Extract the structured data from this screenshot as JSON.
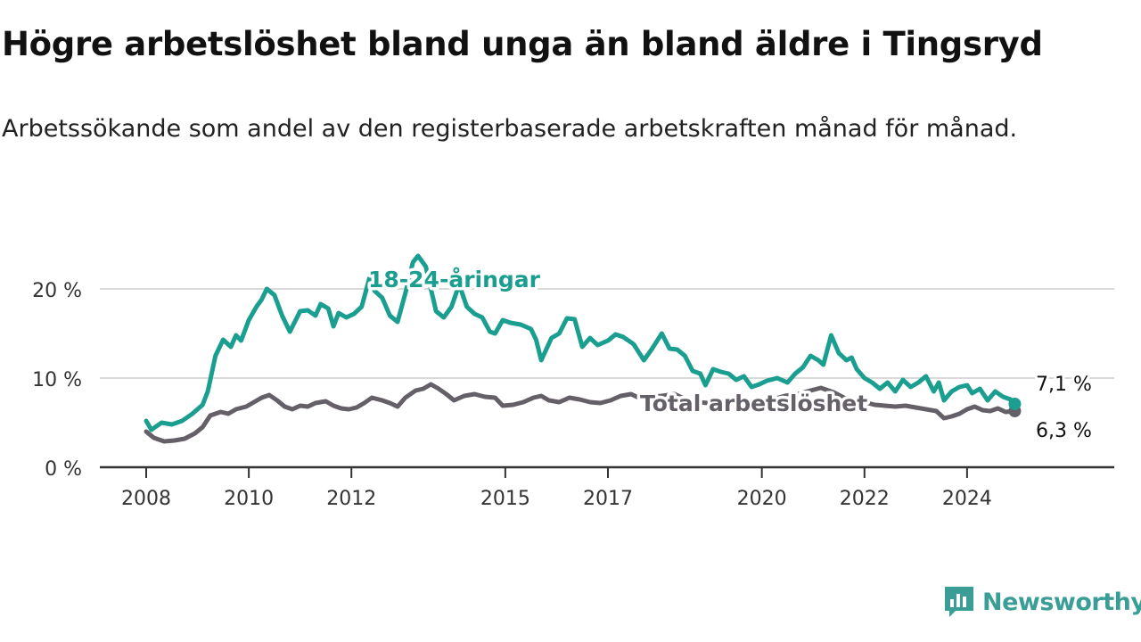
{
  "header": {
    "title": "Högre arbetslöshet bland unga än bland äldre i Tingsryd",
    "subtitle": "Arbetssökande som andel av den registerbaserade arbetskraften månad för månad."
  },
  "brand": {
    "name": "Newsworthy",
    "color": "#3b9e96"
  },
  "chart_data": {
    "type": "line",
    "title": "Högre arbetslöshet bland unga än bland äldre i Tingsryd",
    "subtitle": "Arbetssökande som andel av den registerbaserade arbetskraften månad för månad.",
    "xlabel": "",
    "ylabel": "",
    "xlim": [
      2008.0,
      2026.0
    ],
    "ylim": [
      0,
      24
    ],
    "x_ticks": [
      2008,
      2010,
      2012,
      2015,
      2017,
      2020,
      2022,
      2024
    ],
    "x_tick_labels": [
      "2008",
      "2010",
      "2012",
      "2015",
      "2017",
      "2020",
      "2022",
      "2024"
    ],
    "y_ticks": [
      0,
      10,
      20
    ],
    "y_tick_labels": [
      "0 %",
      "10 %",
      "20 %"
    ],
    "grid": "horizontal",
    "series": [
      {
        "name": "18-24-åringar",
        "color": "#1a9e8f",
        "end_label": "7,1 %",
        "points": [
          [
            2008.0,
            5.2
          ],
          [
            2008.1,
            4.2
          ],
          [
            2008.3,
            5.0
          ],
          [
            2008.5,
            4.8
          ],
          [
            2008.7,
            5.2
          ],
          [
            2008.9,
            6.0
          ],
          [
            2009.1,
            7.0
          ],
          [
            2009.2,
            8.5
          ],
          [
            2009.35,
            12.5
          ],
          [
            2009.5,
            14.3
          ],
          [
            2009.65,
            13.5
          ],
          [
            2009.75,
            14.8
          ],
          [
            2009.85,
            14.2
          ],
          [
            2010.0,
            16.5
          ],
          [
            2010.15,
            18.0
          ],
          [
            2010.25,
            18.8
          ],
          [
            2010.35,
            20.0
          ],
          [
            2010.5,
            19.3
          ],
          [
            2010.65,
            17.0
          ],
          [
            2010.8,
            15.2
          ],
          [
            2011.0,
            17.5
          ],
          [
            2011.15,
            17.6
          ],
          [
            2011.3,
            17.0
          ],
          [
            2011.4,
            18.3
          ],
          [
            2011.55,
            17.8
          ],
          [
            2011.65,
            15.8
          ],
          [
            2011.75,
            17.3
          ],
          [
            2011.9,
            16.8
          ],
          [
            2012.05,
            17.2
          ],
          [
            2012.2,
            18.0
          ],
          [
            2012.35,
            21.2
          ],
          [
            2012.45,
            19.8
          ],
          [
            2012.6,
            19.0
          ],
          [
            2012.75,
            17.0
          ],
          [
            2012.9,
            16.3
          ],
          [
            2013.05,
            19.5
          ],
          [
            2013.2,
            23.0
          ],
          [
            2013.3,
            23.7
          ],
          [
            2013.45,
            22.5
          ],
          [
            2013.55,
            20.0
          ],
          [
            2013.65,
            17.5
          ],
          [
            2013.8,
            16.8
          ],
          [
            2013.95,
            18.0
          ],
          [
            2014.1,
            20.5
          ],
          [
            2014.25,
            18.0
          ],
          [
            2014.4,
            17.2
          ],
          [
            2014.55,
            16.8
          ],
          [
            2014.7,
            15.2
          ],
          [
            2014.8,
            15.0
          ],
          [
            2014.95,
            16.5
          ],
          [
            2015.1,
            16.2
          ],
          [
            2015.3,
            16.0
          ],
          [
            2015.5,
            15.5
          ],
          [
            2015.6,
            14.3
          ],
          [
            2015.7,
            12.0
          ],
          [
            2015.9,
            14.5
          ],
          [
            2016.05,
            15.0
          ],
          [
            2016.2,
            16.7
          ],
          [
            2016.35,
            16.6
          ],
          [
            2016.5,
            13.5
          ],
          [
            2016.65,
            14.5
          ],
          [
            2016.8,
            13.7
          ],
          [
            2017.0,
            14.2
          ],
          [
            2017.15,
            14.9
          ],
          [
            2017.3,
            14.6
          ],
          [
            2017.5,
            13.8
          ],
          [
            2017.7,
            12.0
          ],
          [
            2017.85,
            13.2
          ],
          [
            2018.05,
            15.0
          ],
          [
            2018.2,
            13.3
          ],
          [
            2018.35,
            13.2
          ],
          [
            2018.5,
            12.5
          ],
          [
            2018.65,
            10.8
          ],
          [
            2018.8,
            10.5
          ],
          [
            2018.9,
            9.2
          ],
          [
            2019.05,
            11.0
          ],
          [
            2019.2,
            10.7
          ],
          [
            2019.35,
            10.5
          ],
          [
            2019.5,
            9.8
          ],
          [
            2019.65,
            10.2
          ],
          [
            2019.8,
            9.0
          ],
          [
            2019.95,
            9.3
          ],
          [
            2020.1,
            9.7
          ],
          [
            2020.3,
            10.0
          ],
          [
            2020.5,
            9.5
          ],
          [
            2020.65,
            10.5
          ],
          [
            2020.8,
            11.2
          ],
          [
            2020.95,
            12.5
          ],
          [
            2021.1,
            12.0
          ],
          [
            2021.2,
            11.5
          ],
          [
            2021.35,
            14.8
          ],
          [
            2021.5,
            12.8
          ],
          [
            2021.65,
            12.0
          ],
          [
            2021.75,
            12.3
          ],
          [
            2021.85,
            11.0
          ],
          [
            2022.0,
            10.0
          ],
          [
            2022.15,
            9.5
          ],
          [
            2022.3,
            8.8
          ],
          [
            2022.45,
            9.5
          ],
          [
            2022.6,
            8.5
          ],
          [
            2022.75,
            9.8
          ],
          [
            2022.9,
            9.0
          ],
          [
            2023.05,
            9.5
          ],
          [
            2023.2,
            10.2
          ],
          [
            2023.35,
            8.5
          ],
          [
            2023.45,
            9.5
          ],
          [
            2023.55,
            7.5
          ],
          [
            2023.7,
            8.5
          ],
          [
            2023.85,
            9.0
          ],
          [
            2024.0,
            9.2
          ],
          [
            2024.1,
            8.3
          ],
          [
            2024.25,
            8.8
          ],
          [
            2024.4,
            7.5
          ],
          [
            2024.55,
            8.5
          ],
          [
            2024.7,
            7.9
          ],
          [
            2024.85,
            7.6
          ],
          [
            2024.93,
            7.1
          ]
        ]
      },
      {
        "name": "Total arbetslöshet",
        "color": "#656068",
        "end_label": "6,3 %",
        "points": [
          [
            2008.0,
            4.0
          ],
          [
            2008.15,
            3.3
          ],
          [
            2008.35,
            2.9
          ],
          [
            2008.55,
            3.0
          ],
          [
            2008.75,
            3.2
          ],
          [
            2008.95,
            3.8
          ],
          [
            2009.1,
            4.5
          ],
          [
            2009.25,
            5.8
          ],
          [
            2009.45,
            6.2
          ],
          [
            2009.6,
            6.0
          ],
          [
            2009.75,
            6.5
          ],
          [
            2009.95,
            6.8
          ],
          [
            2010.1,
            7.3
          ],
          [
            2010.25,
            7.8
          ],
          [
            2010.4,
            8.1
          ],
          [
            2010.55,
            7.5
          ],
          [
            2010.7,
            6.8
          ],
          [
            2010.85,
            6.5
          ],
          [
            2011.0,
            6.9
          ],
          [
            2011.15,
            6.8
          ],
          [
            2011.3,
            7.2
          ],
          [
            2011.5,
            7.4
          ],
          [
            2011.65,
            6.9
          ],
          [
            2011.8,
            6.6
          ],
          [
            2011.95,
            6.5
          ],
          [
            2012.1,
            6.7
          ],
          [
            2012.25,
            7.2
          ],
          [
            2012.4,
            7.8
          ],
          [
            2012.6,
            7.5
          ],
          [
            2012.75,
            7.2
          ],
          [
            2012.9,
            6.8
          ],
          [
            2013.05,
            7.8
          ],
          [
            2013.25,
            8.6
          ],
          [
            2013.4,
            8.8
          ],
          [
            2013.55,
            9.3
          ],
          [
            2013.7,
            8.8
          ],
          [
            2013.85,
            8.2
          ],
          [
            2014.0,
            7.5
          ],
          [
            2014.2,
            8.0
          ],
          [
            2014.4,
            8.2
          ],
          [
            2014.6,
            7.9
          ],
          [
            2014.8,
            7.8
          ],
          [
            2014.95,
            6.9
          ],
          [
            2015.15,
            7.0
          ],
          [
            2015.35,
            7.3
          ],
          [
            2015.55,
            7.8
          ],
          [
            2015.7,
            8.0
          ],
          [
            2015.85,
            7.5
          ],
          [
            2016.05,
            7.3
          ],
          [
            2016.25,
            7.8
          ],
          [
            2016.45,
            7.6
          ],
          [
            2016.65,
            7.3
          ],
          [
            2016.85,
            7.2
          ],
          [
            2017.05,
            7.5
          ],
          [
            2017.25,
            8.0
          ],
          [
            2017.45,
            8.2
          ],
          [
            2017.6,
            7.8
          ],
          [
            2017.8,
            7.9
          ],
          [
            2018.05,
            8.0
          ],
          [
            2018.3,
            8.2
          ],
          [
            2018.55,
            7.5
          ],
          [
            2018.75,
            7.3
          ],
          [
            2018.95,
            7.2
          ],
          [
            2019.2,
            7.5
          ],
          [
            2019.45,
            7.4
          ],
          [
            2019.7,
            7.5
          ],
          [
            2019.95,
            7.3
          ],
          [
            2020.2,
            7.6
          ],
          [
            2020.45,
            8.0
          ],
          [
            2020.7,
            8.2
          ],
          [
            2020.95,
            8.6
          ],
          [
            2021.15,
            8.9
          ],
          [
            2021.4,
            8.4
          ],
          [
            2021.6,
            7.8
          ],
          [
            2021.8,
            7.5
          ],
          [
            2022.0,
            7.3
          ],
          [
            2022.2,
            7.0
          ],
          [
            2022.4,
            6.9
          ],
          [
            2022.6,
            6.8
          ],
          [
            2022.8,
            6.9
          ],
          [
            2023.0,
            6.7
          ],
          [
            2023.2,
            6.5
          ],
          [
            2023.4,
            6.3
          ],
          [
            2023.55,
            5.5
          ],
          [
            2023.7,
            5.7
          ],
          [
            2023.85,
            6.0
          ],
          [
            2024.0,
            6.5
          ],
          [
            2024.15,
            6.8
          ],
          [
            2024.3,
            6.4
          ],
          [
            2024.45,
            6.3
          ],
          [
            2024.6,
            6.6
          ],
          [
            2024.75,
            6.2
          ],
          [
            2024.93,
            6.3
          ]
        ]
      }
    ]
  }
}
